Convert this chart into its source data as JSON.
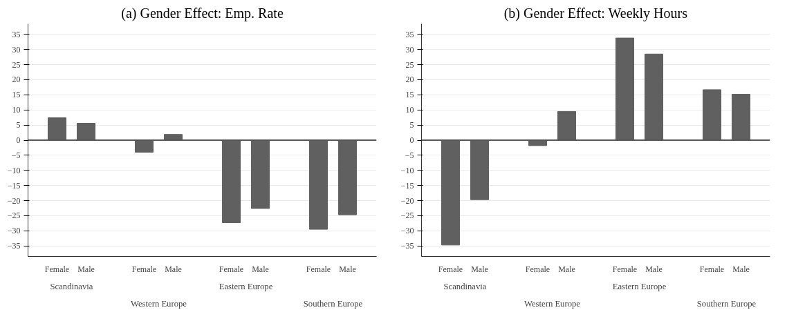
{
  "chart_data": [
    {
      "type": "bar",
      "title": "(a) Gender Effect: Emp. Rate",
      "categories": [
        "Female",
        "Male",
        "Female",
        "Male",
        "Female",
        "Male",
        "Female",
        "Male"
      ],
      "annotations": [
        "Scandinavia",
        "Western Europe",
        "Eastern Europe",
        "Southern Europe"
      ],
      "values": [
        7.4,
        5.6,
        -4.0,
        1.9,
        -27.3,
        -22.6,
        -29.5,
        -24.7
      ],
      "color": "#606060",
      "ylim": [
        -38.5,
        38.5
      ],
      "yticks": [
        -35,
        -30,
        -25,
        -20,
        -15,
        -10,
        -5,
        0,
        5,
        10,
        15,
        20,
        25,
        30,
        35
      ],
      "ref_lines": [
        {
          "axis": "y",
          "value": 0,
          "color": "#555555"
        }
      ],
      "grid": "y"
    },
    {
      "type": "bar",
      "title": "(b) Gender Effect: Weekly Hours",
      "categories": [
        "Female",
        "Male",
        "Female",
        "Male",
        "Female",
        "Male",
        "Female",
        "Male"
      ],
      "annotations": [
        "Scandinavia",
        "Western Europe",
        "Eastern Europe",
        "Southern Europe"
      ],
      "values": [
        -34.7,
        -19.7,
        -1.8,
        9.5,
        33.8,
        28.5,
        16.7,
        15.2
      ],
      "color": "#606060",
      "ylim": [
        -38.5,
        38.5
      ],
      "yticks": [
        -35,
        -30,
        -25,
        -20,
        -15,
        -10,
        -5,
        0,
        5,
        10,
        15,
        20,
        25,
        30,
        35
      ],
      "ref_lines": [
        {
          "axis": "y",
          "value": 0,
          "color": "#555555"
        }
      ],
      "grid": "y"
    }
  ]
}
